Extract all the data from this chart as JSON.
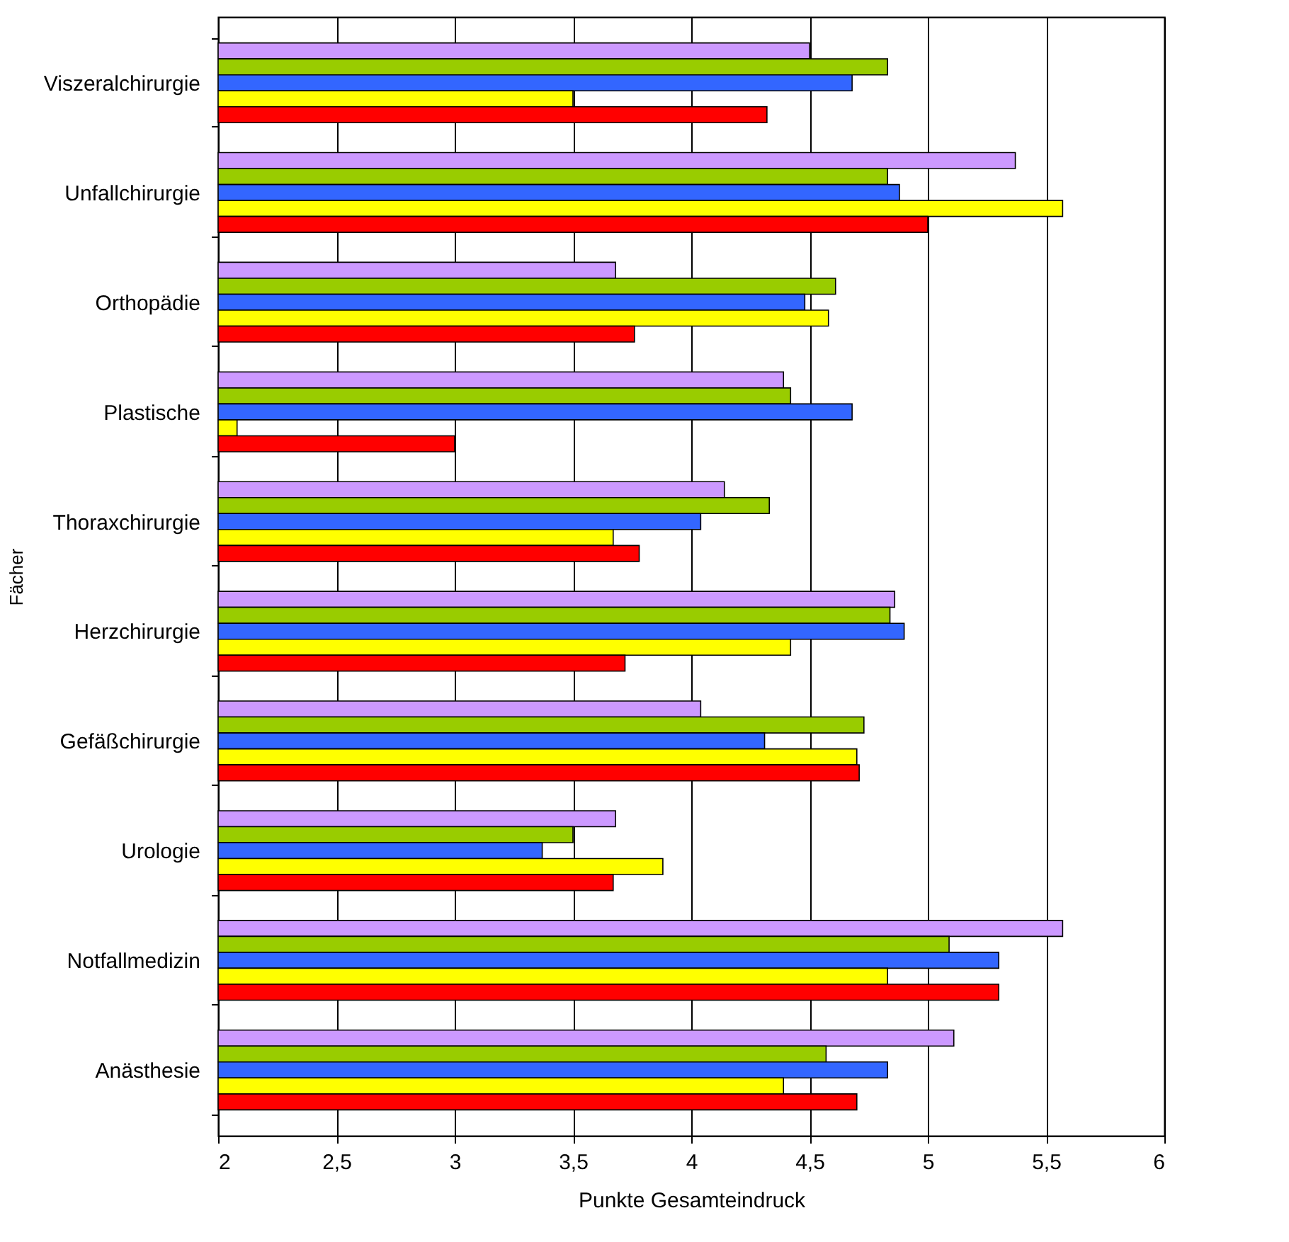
{
  "chart_data": {
    "type": "bar",
    "orientation": "horizontal",
    "xlabel": "Punkte Gesamteindruck",
    "ylabel": "Fächer",
    "categories": [
      "Viszeralchirurgie",
      "Unfallchirurgie",
      "Orthopädie",
      "Plastische",
      "Thoraxchirurgie",
      "Herzchirurgie",
      "Gefäßchirurgie",
      "Urologie",
      "Notfallmedizin",
      "Anästhesie"
    ],
    "series": [
      {
        "color": "#cc99ff",
        "values": [
          4.5,
          5.37,
          3.68,
          4.39,
          4.14,
          4.86,
          4.04,
          3.68,
          5.57,
          5.11
        ]
      },
      {
        "color": "#99cc00",
        "values": [
          4.83,
          4.83,
          4.61,
          4.42,
          4.33,
          4.84,
          4.73,
          3.5,
          5.09,
          4.57
        ]
      },
      {
        "color": "#3366ff",
        "values": [
          4.68,
          4.88,
          4.48,
          4.68,
          4.04,
          4.9,
          4.31,
          3.37,
          5.3,
          4.83
        ]
      },
      {
        "color": "#ffff00",
        "values": [
          3.5,
          5.57,
          4.58,
          2.08,
          3.67,
          4.42,
          4.7,
          3.88,
          4.83,
          4.39
        ]
      },
      {
        "color": "#ff0000",
        "values": [
          4.32,
          5.0,
          3.76,
          3.0,
          3.78,
          3.72,
          4.71,
          3.67,
          5.3,
          4.7
        ]
      }
    ],
    "xlim": [
      2,
      6
    ],
    "xticks": [
      2,
      {
        "value": 2.5,
        "label": "2,5"
      },
      3,
      {
        "value": 3.5,
        "label": "3,5"
      },
      4,
      {
        "value": 4.5,
        "label": "4,5"
      },
      5,
      {
        "value": 5.5,
        "label": "5,5"
      },
      6
    ],
    "grid": "x",
    "legend": false
  }
}
